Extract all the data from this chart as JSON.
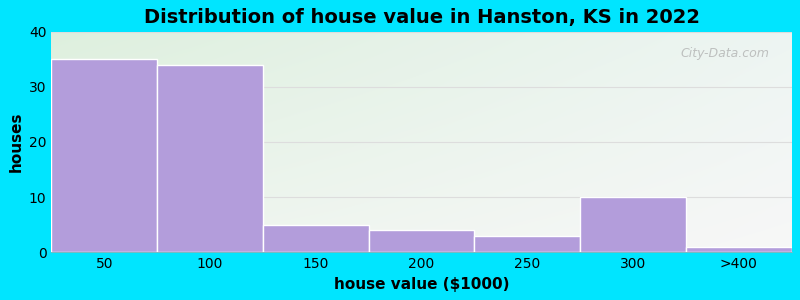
{
  "title": "Distribution of house value in Hanston, KS in 2022",
  "xlabel": "house value ($1000)",
  "ylabel": "houses",
  "categories": [
    "50",
    "100",
    "150",
    "200",
    "250",
    "300",
    ">400"
  ],
  "values": [
    35,
    34,
    5,
    4,
    3,
    10,
    1
  ],
  "bar_color": "#b39ddb",
  "bar_edgecolor": "#ffffff",
  "ylim": [
    0,
    40
  ],
  "yticks": [
    0,
    10,
    20,
    30,
    40
  ],
  "background_color": "#00e5ff",
  "plot_bg_top_left": "#ddeedd",
  "plot_bg_top_right": "#eef5f5",
  "plot_bg_bottom_left": "#eef5ee",
  "plot_bg_bottom_right": "#f8f8f8",
  "grid_color": "#dddddd",
  "title_fontsize": 14,
  "axis_fontsize": 11,
  "tick_fontsize": 10,
  "watermark": "City-Data.com"
}
